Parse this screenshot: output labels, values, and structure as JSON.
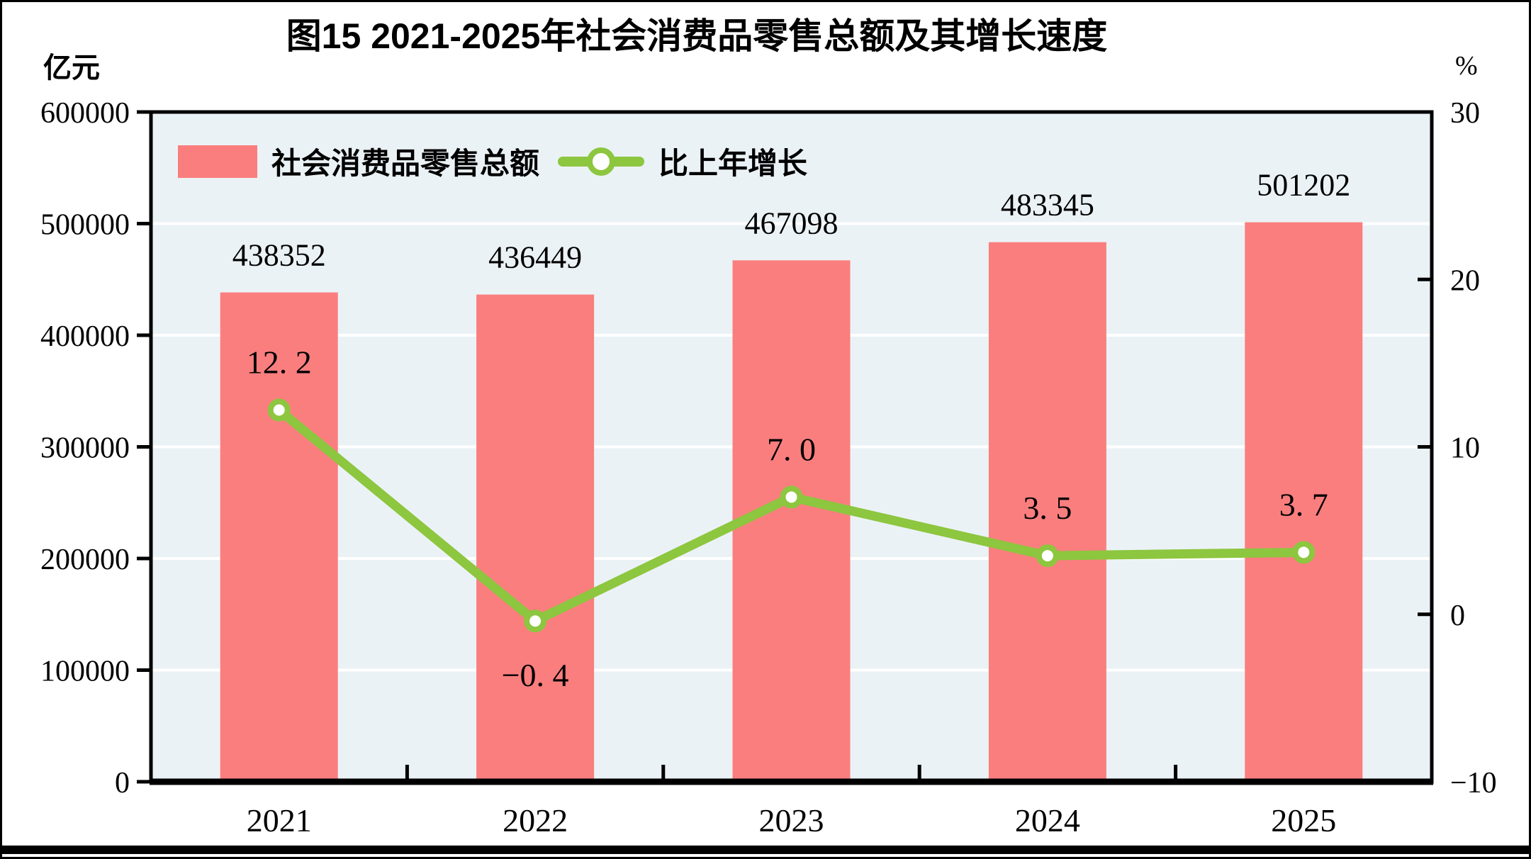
{
  "figure": {
    "title": "图15  2021-2025年社会消费品零售总额及其增长速度"
  },
  "chart_data": {
    "type": "bar+line",
    "categories": [
      "2021",
      "2022",
      "2023",
      "2024",
      "2025"
    ],
    "series": [
      {
        "name": "社会消费品零售总额",
        "type": "bar",
        "axis": "left",
        "values": [
          438352,
          436449,
          467098,
          483345,
          501202
        ],
        "value_labels": [
          "438352",
          "436449",
          "467098",
          "483345",
          "501202"
        ],
        "color": "#FA7E7E"
      },
      {
        "name": "比上年增长",
        "type": "line",
        "axis": "right",
        "values": [
          12.2,
          -0.4,
          7.0,
          3.5,
          3.7
        ],
        "value_labels": [
          "12. 2",
          "−0. 4",
          "7. 0",
          "3. 5",
          "3. 7"
        ],
        "label_side": [
          "above",
          "below",
          "above",
          "above",
          "above"
        ],
        "color": "#8DC63F",
        "marker": "circle-white-fill"
      }
    ],
    "left_axis": {
      "unit": "亿元",
      "min": 0,
      "max": 600000,
      "tick_step": 100000,
      "tick_labels": [
        "600000",
        "500000",
        "400000",
        "300000",
        "200000",
        "100000",
        "0"
      ]
    },
    "right_axis": {
      "unit": "%",
      "min": -10,
      "max": 30,
      "tick_step": 10,
      "tick_labels": [
        "30",
        "20",
        "10",
        "0",
        "−10"
      ]
    },
    "grid": {
      "horizontal": true,
      "color": "#ffffff"
    },
    "plot_bg": "#EBF2F6",
    "legend_position": "top-left-inside"
  }
}
